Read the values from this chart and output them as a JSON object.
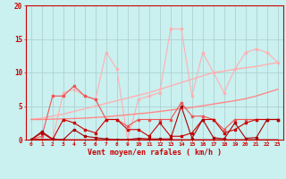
{
  "xlabel": "Vent moyen/en rafales ( km/h )",
  "background_color": "#caf0f0",
  "grid_color": "#aacccc",
  "x_values": [
    0,
    1,
    2,
    3,
    4,
    5,
    6,
    7,
    8,
    9,
    10,
    11,
    12,
    13,
    14,
    15,
    16,
    17,
    18,
    19,
    20,
    21,
    22,
    23
  ],
  "line_rafales_pale": [
    0.0,
    0.0,
    0.0,
    7.0,
    7.5,
    6.5,
    6.0,
    13.0,
    10.5,
    0.0,
    6.0,
    6.5,
    7.0,
    16.5,
    16.5,
    6.5,
    13.0,
    10.0,
    7.0,
    10.5,
    13.0,
    13.5,
    13.0,
    11.5
  ],
  "line_trend_upper": [
    3.0,
    3.2,
    3.5,
    3.8,
    4.2,
    4.6,
    5.0,
    5.4,
    5.8,
    6.2,
    6.6,
    7.0,
    7.5,
    8.0,
    8.5,
    9.0,
    9.5,
    10.0,
    10.2,
    10.5,
    10.7,
    10.9,
    11.2,
    11.5
  ],
  "line_trend_lower": [
    3.0,
    3.0,
    3.05,
    3.1,
    3.15,
    3.2,
    3.3,
    3.4,
    3.55,
    3.7,
    3.85,
    4.0,
    4.2,
    4.4,
    4.6,
    4.8,
    5.05,
    5.3,
    5.55,
    5.8,
    6.1,
    6.5,
    7.0,
    7.5
  ],
  "line_medium_spiky": [
    0.0,
    0.5,
    6.5,
    6.5,
    8.0,
    6.5,
    6.0,
    3.0,
    3.0,
    2.0,
    3.0,
    3.0,
    3.0,
    3.0,
    5.5,
    3.5,
    3.5,
    3.0,
    1.5,
    3.0,
    3.0,
    3.0,
    3.0,
    3.0
  ],
  "line_dark_spiky1": [
    0.0,
    1.0,
    0.0,
    3.0,
    2.5,
    1.5,
    1.0,
    3.0,
    3.0,
    1.5,
    1.5,
    0.5,
    2.5,
    0.5,
    0.5,
    1.0,
    3.0,
    3.0,
    1.0,
    1.5,
    2.5,
    3.0,
    3.0,
    3.0
  ],
  "line_dark_spiky2": [
    0.0,
    1.2,
    0.1,
    0.0,
    1.5,
    0.5,
    0.3,
    0.1,
    0.0,
    0.0,
    0.2,
    0.1,
    0.1,
    0.1,
    5.0,
    0.2,
    3.0,
    0.3,
    0.1,
    2.5,
    0.2,
    0.3,
    3.0,
    3.0
  ],
  "line_zero": [
    0.0,
    0.1,
    0.0,
    0.0,
    0.0,
    0.0,
    0.0,
    0.0,
    0.0,
    0.0,
    0.0,
    0.0,
    0.0,
    0.0,
    0.0,
    0.0,
    0.0,
    0.0,
    0.0,
    0.0,
    0.0,
    0.0,
    0.0,
    0.0
  ],
  "color_pale": "#ffb0b0",
  "color_light": "#ff8888",
  "color_medium": "#ee5555",
  "color_dark": "#cc0000",
  "color_darkest": "#aa0000",
  "ylim": [
    0,
    20
  ],
  "yticks": [
    0,
    5,
    10,
    15,
    20
  ]
}
